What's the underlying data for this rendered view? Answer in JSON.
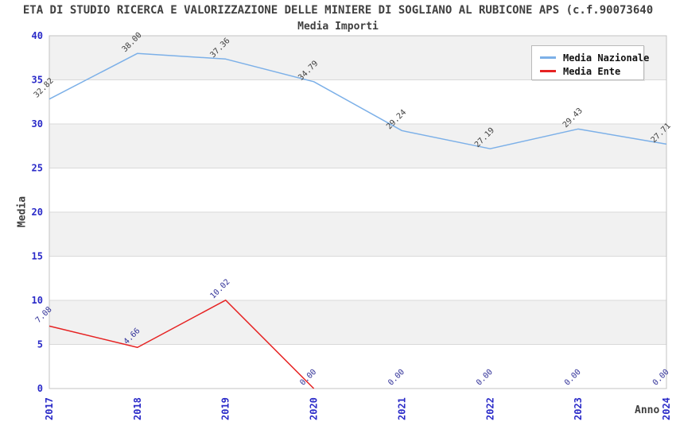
{
  "page": {
    "title": "ETA DI STUDIO RICERCA E VALORIZZAZIONE DELLE MINIERE DI SOGLIANO AL RUBICONE APS (c.f.90073640",
    "subtitle": "Media Importi"
  },
  "style": {
    "band_fill": "#f1f1f1",
    "grid_line": "#d9d9d9",
    "plot_border": "#c3c3c3",
    "tick_label_color": "#2a2ac8",
    "title_color": "#404040",
    "nazionale_line": "#7cb0e8",
    "ente_line": "#e62222",
    "nazionale_label_color": "#404040",
    "ente_label_color": "#333399"
  },
  "chart_data": {
    "type": "line",
    "title": "Media Importi",
    "x": [
      "2017",
      "2018",
      "2019",
      "2020",
      "2021",
      "2022",
      "2023",
      "2024"
    ],
    "series": [
      {
        "name": "Media Nazionale",
        "color": "#7cb0e8",
        "label_color": "#404040",
        "values": [
          32.82,
          38.0,
          37.36,
          34.79,
          29.24,
          27.19,
          29.43,
          27.71
        ]
      },
      {
        "name": "Media Ente",
        "color": "#e62222",
        "label_color": "#333399",
        "values": [
          7.08,
          4.66,
          10.02,
          0.0,
          0.0,
          0.0,
          0.0,
          0.0
        ],
        "line_visible_through_index": 3
      }
    ],
    "xlabel": "Anno",
    "ylabel": "Media",
    "ylim": [
      0,
      40
    ],
    "yticks": [
      0,
      5,
      10,
      15,
      20,
      25,
      30,
      35,
      40
    ],
    "grid": "horizontal gridlines with alternating grey/white bands",
    "legend_position": "top-right",
    "point_labels": "each point labeled with value, rotated 45°, two decimals"
  }
}
